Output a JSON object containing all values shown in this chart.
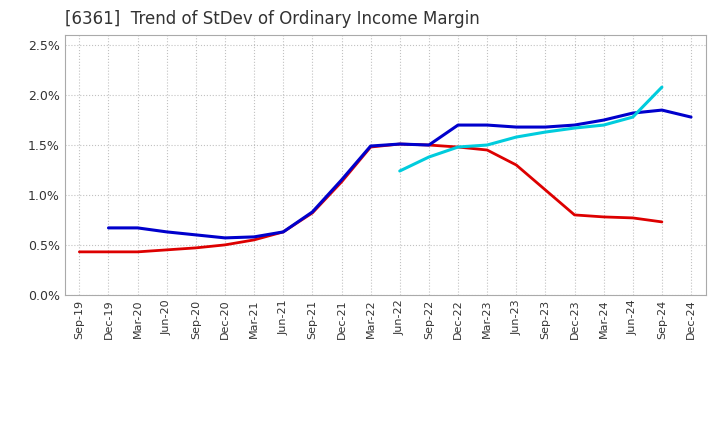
{
  "title": "[6361]  Trend of StDev of Ordinary Income Margin",
  "title_fontsize": 12,
  "title_color": "#333333",
  "background_color": "#ffffff",
  "plot_bg_color": "#ffffff",
  "grid_color": "#999999",
  "ylim": [
    0.0,
    0.026
  ],
  "yticks": [
    0.0,
    0.005,
    0.01,
    0.015,
    0.02,
    0.025
  ],
  "ytick_labels": [
    "0.0%",
    "0.5%",
    "1.0%",
    "1.5%",
    "2.0%",
    "2.5%"
  ],
  "xtick_labels": [
    "Sep-19",
    "Dec-19",
    "Mar-20",
    "Jun-20",
    "Sep-20",
    "Dec-20",
    "Mar-21",
    "Jun-21",
    "Sep-21",
    "Dec-21",
    "Mar-22",
    "Jun-22",
    "Sep-22",
    "Dec-22",
    "Mar-23",
    "Jun-23",
    "Sep-23",
    "Dec-23",
    "Mar-24",
    "Jun-24",
    "Sep-24",
    "Dec-24"
  ],
  "series_3y": [
    0.0043,
    0.0043,
    0.0043,
    0.0045,
    0.0047,
    0.005,
    0.0055,
    0.0063,
    0.0082,
    0.0113,
    0.0148,
    0.0151,
    0.015,
    0.0148,
    0.0145,
    0.013,
    0.0105,
    0.008,
    0.0078,
    0.0077,
    0.0073,
    null
  ],
  "series_5y": [
    null,
    0.0067,
    0.0067,
    0.0063,
    0.006,
    0.0057,
    0.0058,
    0.0063,
    0.0083,
    0.0115,
    0.0149,
    0.0151,
    0.015,
    0.017,
    0.017,
    0.0168,
    0.0168,
    0.017,
    0.0175,
    0.0182,
    0.0185,
    0.0178
  ],
  "series_7y": [
    null,
    null,
    null,
    null,
    null,
    null,
    null,
    null,
    null,
    null,
    null,
    0.0124,
    0.0138,
    0.0148,
    0.015,
    0.0158,
    0.0163,
    0.0167,
    0.017,
    0.0178,
    0.0208,
    null
  ],
  "series_10y": [
    null,
    null,
    null,
    null,
    null,
    null,
    null,
    null,
    null,
    null,
    null,
    null,
    null,
    null,
    null,
    null,
    null,
    null,
    null,
    null,
    null,
    null
  ],
  "color_3y": "#dd0000",
  "color_5y": "#0000cc",
  "color_7y": "#00ccdd",
  "color_10y": "#008800",
  "lw_3y": 2.0,
  "lw_5y": 2.2,
  "lw_7y": 2.2,
  "lw_10y": 2.0,
  "xtick_fontsize": 8.0,
  "ytick_fontsize": 9.0
}
